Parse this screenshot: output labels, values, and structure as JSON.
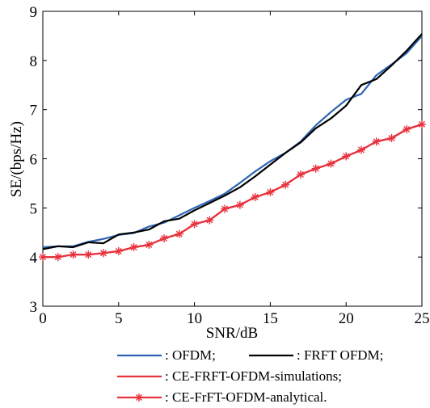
{
  "chart_data": {
    "type": "line",
    "xlabel": "SNR/dB",
    "ylabel": "SE/(bps/Hz)",
    "xlim": [
      0,
      25
    ],
    "ylim": [
      3,
      9
    ],
    "xticks": [
      0,
      5,
      10,
      15,
      20,
      25
    ],
    "yticks": [
      3,
      4,
      5,
      6,
      7,
      8,
      9
    ],
    "grid": false,
    "legend_placement": "below",
    "x": [
      0,
      1,
      2,
      3,
      4,
      5,
      6,
      7,
      8,
      9,
      10,
      11,
      12,
      13,
      14,
      15,
      16,
      17,
      18,
      19,
      20,
      21,
      22,
      23,
      24,
      25
    ],
    "series": [
      {
        "name": ": OFDM;",
        "color": "#2e64b4",
        "marker": "none",
        "values": [
          4.2,
          4.22,
          4.22,
          4.31,
          4.37,
          4.45,
          4.49,
          4.62,
          4.7,
          4.85,
          5.0,
          5.14,
          5.29,
          5.51,
          5.74,
          5.95,
          6.12,
          6.35,
          6.68,
          6.95,
          7.2,
          7.32,
          7.7,
          7.92,
          8.15,
          8.5
        ]
      },
      {
        "name": ": FRFT OFDM;",
        "color": "#000000",
        "marker": "none",
        "values": [
          4.16,
          4.22,
          4.2,
          4.3,
          4.28,
          4.46,
          4.5,
          4.56,
          4.73,
          4.78,
          4.95,
          5.1,
          5.25,
          5.42,
          5.64,
          5.88,
          6.12,
          6.33,
          6.62,
          6.82,
          7.08,
          7.5,
          7.62,
          7.9,
          8.2,
          8.54
        ]
      },
      {
        "name": ": CE-FRFT-OFDM-simulations;",
        "color": "#e8323c",
        "marker": "none",
        "values": [
          4.0,
          4.0,
          4.05,
          4.05,
          4.08,
          4.12,
          4.2,
          4.25,
          4.38,
          4.47,
          4.67,
          4.75,
          4.98,
          5.06,
          5.22,
          5.32,
          5.47,
          5.68,
          5.8,
          5.9,
          6.05,
          6.18,
          6.35,
          6.42,
          6.6,
          6.7
        ]
      },
      {
        "name": ": CE-FrFT-OFDM-analytical.",
        "color": "#e8323c",
        "marker": "asterisk",
        "values": [
          4.0,
          4.0,
          4.05,
          4.05,
          4.08,
          4.12,
          4.2,
          4.25,
          4.38,
          4.47,
          4.67,
          4.75,
          4.98,
          5.06,
          5.22,
          5.32,
          5.47,
          5.68,
          5.8,
          5.9,
          6.05,
          6.18,
          6.35,
          6.42,
          6.6,
          6.7
        ]
      }
    ]
  }
}
